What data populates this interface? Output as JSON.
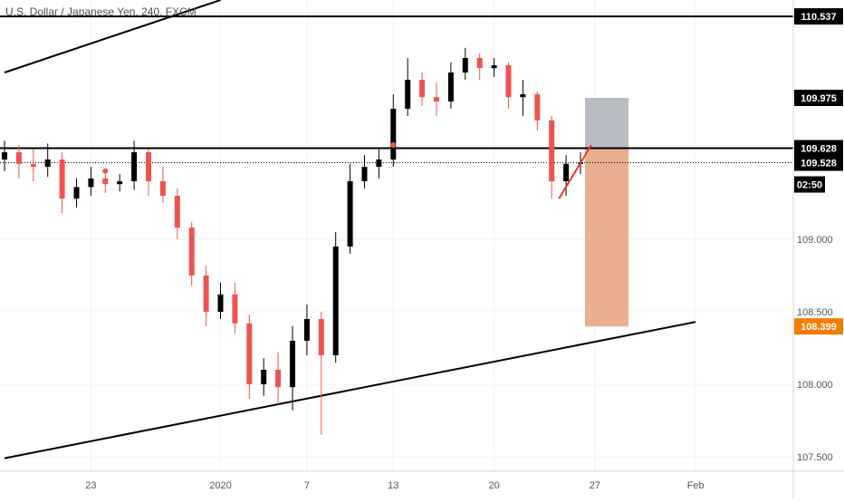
{
  "title": "U.S. Dollar / Japanese Yen, 240, FXCM",
  "countdown": "02:50",
  "colors": {
    "up": "#000000",
    "down": "#ef5350",
    "trendline": "#000000",
    "stop_zone": "#b2b5be",
    "target_zone": "#e8a07c",
    "target_label_bg": "#f57c00",
    "label_bg": "#000000",
    "grid": "#f0f3fa",
    "axis_text": "#555555"
  },
  "chart_data": {
    "type": "candlestick",
    "instrument": "U.S. Dollar / Japanese Yen",
    "timeframe": "240",
    "source": "FXCM",
    "ylim": [
      107.4,
      110.65
    ],
    "y_ticks": [
      "109.000",
      "108.500",
      "108.000",
      "107.500"
    ],
    "x_ticks": [
      "23",
      "2020",
      "7",
      "13",
      "20",
      "27",
      "Feb"
    ],
    "price_labels": [
      "110.537",
      "109.975",
      "109.628",
      "109.528",
      "108.399"
    ],
    "horizontal_levels": [
      110.537,
      109.628
    ],
    "current_price": 109.528,
    "position": {
      "entry": 109.628,
      "stop": 109.975,
      "target": 108.399
    },
    "trendlines": [
      {
        "from": [
          "Dec 17",
          110.15
        ],
        "to": [
          "Jan 1",
          110.65
        ]
      },
      {
        "from": [
          "Dec 17",
          107.49
        ],
        "to": [
          "Feb 3",
          108.43
        ]
      }
    ],
    "markers": [
      {
        "time": "Dec 24",
        "price": 109.47
      },
      {
        "time": "Dec 29",
        "price": 109.28
      },
      {
        "time": "Jan 13",
        "price": 109.65
      }
    ],
    "red_line": {
      "from": [
        "Jan 24",
        109.28
      ],
      "to": [
        "Jan 26",
        109.65
      ]
    },
    "candles": [
      {
        "t": "Dec 17",
        "o": 109.55,
        "h": 109.68,
        "l": 109.47,
        "c": 109.6
      },
      {
        "t": "Dec 18",
        "o": 109.6,
        "h": 109.65,
        "l": 109.42,
        "c": 109.52
      },
      {
        "t": "Dec 19",
        "o": 109.52,
        "h": 109.62,
        "l": 109.4,
        "c": 109.5
      },
      {
        "t": "Dec 20",
        "o": 109.5,
        "h": 109.66,
        "l": 109.43,
        "c": 109.55
      },
      {
        "t": "Dec 21",
        "o": 109.55,
        "h": 109.6,
        "l": 109.18,
        "c": 109.28
      },
      {
        "t": "Dec 22",
        "o": 109.28,
        "h": 109.42,
        "l": 109.22,
        "c": 109.36
      },
      {
        "t": "Dec 23",
        "o": 109.36,
        "h": 109.5,
        "l": 109.3,
        "c": 109.42
      },
      {
        "t": "Dec 24",
        "o": 109.42,
        "h": 109.48,
        "l": 109.32,
        "c": 109.38
      },
      {
        "t": "Dec 25",
        "o": 109.38,
        "h": 109.45,
        "l": 109.33,
        "c": 109.4
      },
      {
        "t": "Dec 26",
        "o": 109.4,
        "h": 109.68,
        "l": 109.34,
        "c": 109.6
      },
      {
        "t": "Dec 27",
        "o": 109.6,
        "h": 109.62,
        "l": 109.3,
        "c": 109.4
      },
      {
        "t": "Dec 28",
        "o": 109.4,
        "h": 109.5,
        "l": 109.25,
        "c": 109.3
      },
      {
        "t": "Dec 29",
        "o": 109.3,
        "h": 109.35,
        "l": 109.0,
        "c": 109.08
      },
      {
        "t": "Dec 30",
        "o": 109.08,
        "h": 109.12,
        "l": 108.68,
        "c": 108.75
      },
      {
        "t": "Dec 31",
        "o": 108.75,
        "h": 108.82,
        "l": 108.4,
        "c": 108.5
      },
      {
        "t": "Jan 1",
        "o": 108.5,
        "h": 108.7,
        "l": 108.45,
        "c": 108.62
      },
      {
        "t": "Jan 2",
        "o": 108.62,
        "h": 108.7,
        "l": 108.35,
        "c": 108.42
      },
      {
        "t": "Jan 3",
        "o": 108.42,
        "h": 108.48,
        "l": 107.9,
        "c": 108.0
      },
      {
        "t": "Jan 4",
        "o": 108.0,
        "h": 108.18,
        "l": 107.92,
        "c": 108.1
      },
      {
        "t": "Jan 5",
        "o": 108.1,
        "h": 108.22,
        "l": 107.86,
        "c": 107.98
      },
      {
        "t": "Jan 6",
        "o": 107.98,
        "h": 108.4,
        "l": 107.82,
        "c": 108.3
      },
      {
        "t": "Jan 7",
        "o": 108.3,
        "h": 108.55,
        "l": 108.2,
        "c": 108.45
      },
      {
        "t": "Jan 8",
        "o": 108.45,
        "h": 108.5,
        "l": 107.65,
        "c": 108.2
      },
      {
        "t": "Jan 9",
        "o": 108.2,
        "h": 109.05,
        "l": 108.15,
        "c": 108.95
      },
      {
        "t": "Jan 10",
        "o": 108.95,
        "h": 109.52,
        "l": 108.9,
        "c": 109.4
      },
      {
        "t": "Jan 11",
        "o": 109.4,
        "h": 109.58,
        "l": 109.35,
        "c": 109.5
      },
      {
        "t": "Jan 12",
        "o": 109.5,
        "h": 109.62,
        "l": 109.42,
        "c": 109.55
      },
      {
        "t": "Jan 13",
        "o": 109.55,
        "h": 110.0,
        "l": 109.5,
        "c": 109.9
      },
      {
        "t": "Jan 14",
        "o": 109.9,
        "h": 110.25,
        "l": 109.85,
        "c": 110.1
      },
      {
        "t": "Jan 15",
        "o": 110.1,
        "h": 110.15,
        "l": 109.92,
        "c": 109.98
      },
      {
        "t": "Jan 16",
        "o": 109.98,
        "h": 110.08,
        "l": 109.85,
        "c": 109.95
      },
      {
        "t": "Jan 17",
        "o": 109.95,
        "h": 110.22,
        "l": 109.9,
        "c": 110.15
      },
      {
        "t": "Jan 18",
        "o": 110.15,
        "h": 110.32,
        "l": 110.1,
        "c": 110.25
      },
      {
        "t": "Jan 19",
        "o": 110.25,
        "h": 110.28,
        "l": 110.1,
        "c": 110.18
      },
      {
        "t": "Jan 20",
        "o": 110.18,
        "h": 110.25,
        "l": 110.12,
        "c": 110.2
      },
      {
        "t": "Jan 21",
        "o": 110.2,
        "h": 110.22,
        "l": 109.9,
        "c": 109.98
      },
      {
        "t": "Jan 22",
        "o": 109.98,
        "h": 110.1,
        "l": 109.85,
        "c": 110.0
      },
      {
        "t": "Jan 23",
        "o": 110.0,
        "h": 110.02,
        "l": 109.75,
        "c": 109.82
      },
      {
        "t": "Jan 24",
        "o": 109.82,
        "h": 109.85,
        "l": 109.28,
        "c": 109.4
      },
      {
        "t": "Jan 25",
        "o": 109.4,
        "h": 109.58,
        "l": 109.3,
        "c": 109.52
      },
      {
        "t": "Jan 26",
        "o": 109.52,
        "h": 109.6,
        "l": 109.45,
        "c": 109.53
      }
    ]
  }
}
